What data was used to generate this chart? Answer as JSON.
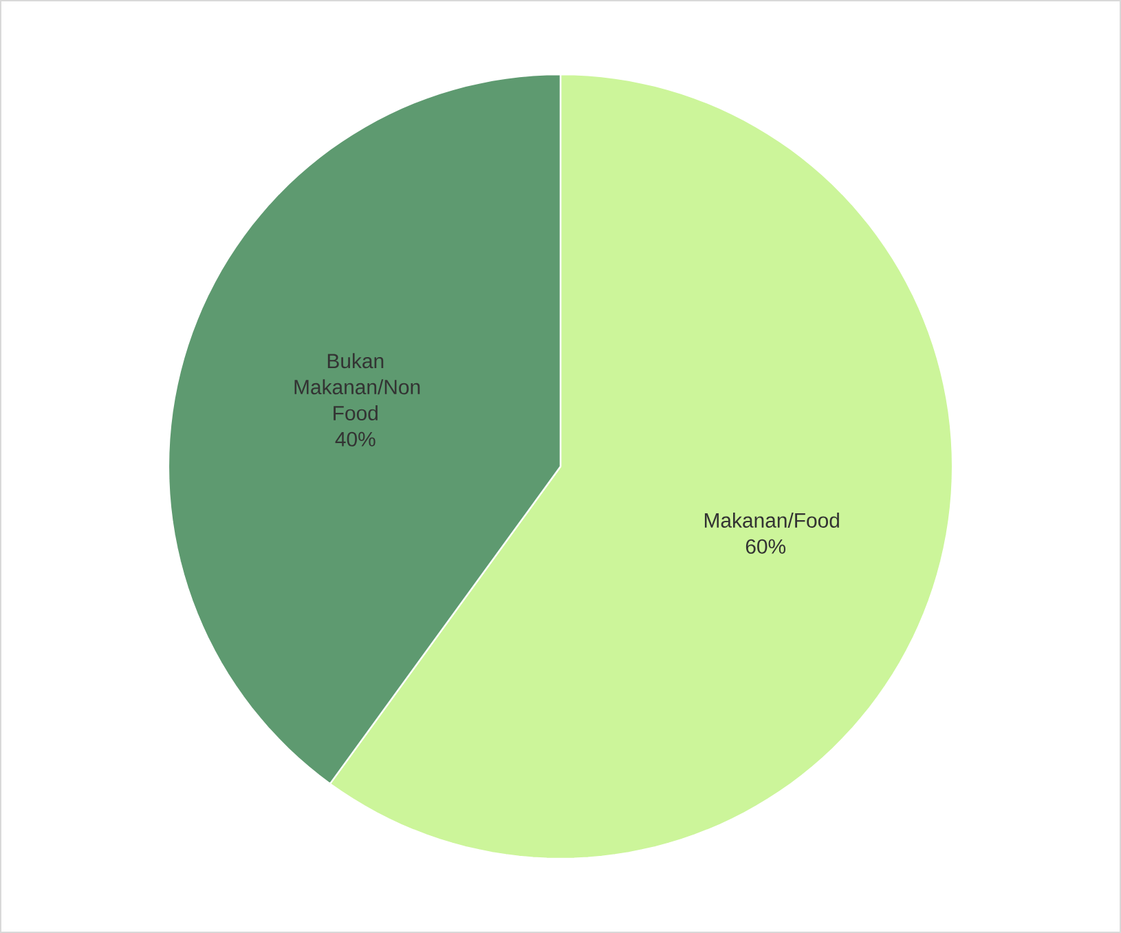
{
  "chart_data": {
    "type": "pie",
    "categories": [
      "Makanan/Food",
      "Bukan Makanan/Non Food"
    ],
    "values": [
      60,
      40
    ],
    "colors": [
      "#ccf59a",
      "#5e9a70"
    ],
    "value_labels": [
      "60%",
      "40%"
    ]
  }
}
